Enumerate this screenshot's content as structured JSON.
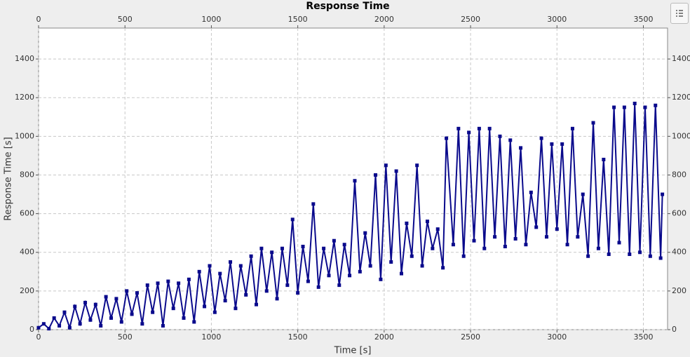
{
  "chart_data": {
    "type": "line",
    "title": "Response Time",
    "x_label": "Time [s]",
    "y_label": "Response Time [s]",
    "xlim": [
      0,
      3640
    ],
    "ylim": [
      0,
      1560
    ],
    "xticks": [
      0,
      500,
      1000,
      1500,
      2000,
      2500,
      3000,
      3500
    ],
    "yticks": [
      0,
      200,
      400,
      600,
      800,
      1000,
      1200,
      1400
    ],
    "grid": true,
    "color": "#0a0a8c",
    "x": [
      0,
      30,
      60,
      90,
      120,
      150,
      180,
      210,
      240,
      270,
      300,
      330,
      360,
      390,
      420,
      450,
      480,
      510,
      540,
      570,
      600,
      630,
      660,
      690,
      720,
      750,
      780,
      810,
      840,
      870,
      900,
      930,
      960,
      990,
      1020,
      1050,
      1080,
      1110,
      1140,
      1170,
      1200,
      1230,
      1260,
      1290,
      1320,
      1350,
      1380,
      1410,
      1440,
      1470,
      1500,
      1530,
      1560,
      1590,
      1620,
      1650,
      1680,
      1710,
      1740,
      1770,
      1800,
      1830,
      1860,
      1890,
      1920,
      1950,
      1980,
      2010,
      2040,
      2070,
      2100,
      2130,
      2160,
      2190,
      2220,
      2250,
      2280,
      2310,
      2340,
      2360,
      2400,
      2430,
      2460,
      2490,
      2520,
      2550,
      2580,
      2610,
      2640,
      2670,
      2700,
      2730,
      2760,
      2790,
      2820,
      2850,
      2880,
      2910,
      2940,
      2970,
      3000,
      3030,
      3060,
      3090,
      3120,
      3150,
      3180,
      3210,
      3240,
      3270,
      3300,
      3330,
      3360,
      3390,
      3420,
      3450,
      3480,
      3510,
      3540,
      3570,
      3600,
      3610
    ],
    "values": [
      10,
      30,
      5,
      60,
      20,
      90,
      10,
      120,
      30,
      140,
      50,
      130,
      20,
      170,
      60,
      160,
      40,
      200,
      80,
      190,
      30,
      230,
      90,
      240,
      20,
      250,
      110,
      240,
      60,
      260,
      40,
      300,
      120,
      330,
      90,
      290,
      150,
      350,
      110,
      330,
      180,
      380,
      130,
      420,
      200,
      400,
      160,
      420,
      230,
      570,
      190,
      430,
      250,
      650,
      220,
      420,
      280,
      460,
      230,
      440,
      280,
      770,
      300,
      500,
      330,
      800,
      260,
      850,
      350,
      820,
      290,
      550,
      380,
      850,
      330,
      560,
      420,
      520,
      320,
      990,
      440,
      1040,
      380,
      1020,
      460,
      1040,
      420,
      1040,
      480,
      1000,
      430,
      980,
      470,
      940,
      440,
      710,
      530,
      990,
      480,
      960,
      520,
      960,
      440,
      1040,
      480,
      700,
      380,
      1070,
      420,
      880,
      390,
      1150,
      450,
      1150,
      390,
      1170,
      400,
      1150,
      380,
      1160,
      370,
      700
    ]
  }
}
